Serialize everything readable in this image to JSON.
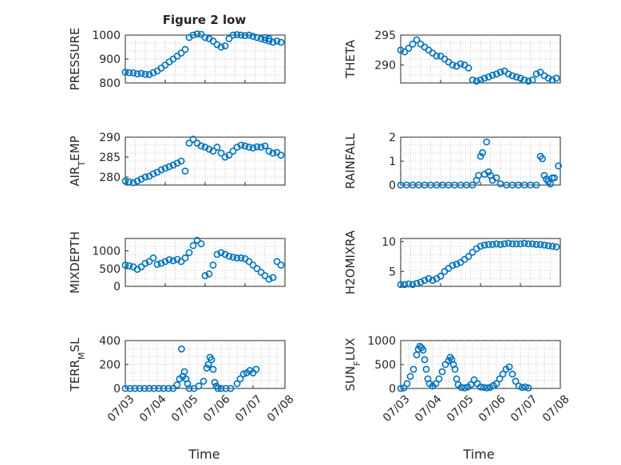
{
  "figure": {
    "title": "Figure 2 low",
    "xlabel": "Time"
  },
  "colors": {
    "marker": "#0072BD",
    "axis": "#262626",
    "grid": "#b8b8b8"
  },
  "chart_data": [
    {
      "type": "scatter",
      "ylabel": "PRESSURE",
      "ylabel_sub": "",
      "ylabel_rest": "",
      "ylim": [
        800,
        1000
      ],
      "yticks": [
        "800",
        "900",
        "1000"
      ],
      "ytick_values": [
        800,
        900,
        1000
      ],
      "xlim": [
        0,
        4
      ],
      "show_xticklabels": false,
      "x": [
        0.0,
        0.1,
        0.2,
        0.3,
        0.4,
        0.5,
        0.6,
        0.7,
        0.8,
        0.9,
        1.0,
        1.1,
        1.2,
        1.3,
        1.4,
        1.5,
        1.6,
        1.7,
        1.8,
        1.9,
        2.0,
        2.1,
        2.2,
        2.3,
        2.4,
        2.5,
        2.6,
        2.7,
        2.8,
        2.9,
        3.0,
        3.1,
        3.2,
        3.3,
        3.4,
        3.5,
        3.6,
        3.7,
        3.8,
        3.9,
        3.5,
        3.6
      ],
      "y": [
        845,
        843,
        842,
        838,
        840,
        836,
        835,
        843,
        850,
        862,
        875,
        888,
        900,
        912,
        925,
        940,
        990,
        1000,
        1005,
        1003,
        990,
        985,
        975,
        960,
        950,
        955,
        985,
        1000,
        1002,
        1000,
        998,
        1000,
        995,
        990,
        985,
        980,
        975,
        970,
        975,
        970,
        990,
        985
      ]
    },
    {
      "type": "scatter",
      "ylabel": "THETA",
      "ylabel_sub": "",
      "ylabel_rest": "",
      "ylim": [
        287,
        295
      ],
      "yticks": [
        "290",
        "295"
      ],
      "ytick_values": [
        290,
        295
      ],
      "xlim": [
        0,
        4
      ],
      "show_xticklabels": false,
      "x": [
        0.0,
        0.1,
        0.2,
        0.3,
        0.4,
        0.5,
        0.6,
        0.7,
        0.8,
        0.9,
        1.0,
        1.1,
        1.2,
        1.3,
        1.4,
        1.5,
        1.6,
        1.7,
        1.8,
        1.9,
        2.0,
        2.1,
        2.2,
        2.3,
        2.4,
        2.5,
        2.6,
        2.7,
        2.8,
        2.9,
        3.0,
        3.1,
        3.2,
        3.3,
        3.4,
        3.5,
        3.6,
        3.7,
        3.8,
        3.9
      ],
      "y": [
        292.5,
        292.2,
        292.8,
        293.5,
        294.2,
        293.5,
        293.0,
        292.5,
        292.0,
        291.5,
        291.5,
        291.0,
        290.5,
        290.0,
        289.8,
        290.2,
        290.0,
        289.5,
        287.5,
        287.3,
        287.5,
        287.8,
        288.0,
        288.3,
        288.5,
        288.8,
        289.0,
        288.5,
        288.2,
        288.0,
        287.8,
        287.5,
        287.3,
        287.5,
        288.5,
        288.8,
        288.2,
        287.8,
        287.5,
        287.8
      ]
    },
    {
      "type": "scatter",
      "ylabel": "AIR",
      "ylabel_sub": "T",
      "ylabel_rest": "EMP",
      "ylim": [
        278,
        290
      ],
      "yticks": [
        "280",
        "285",
        "290"
      ],
      "ytick_values": [
        280,
        285,
        290
      ],
      "xlim": [
        0,
        4
      ],
      "show_xticklabels": false,
      "x": [
        0.0,
        0.1,
        0.2,
        0.3,
        0.4,
        0.5,
        0.6,
        0.7,
        0.8,
        0.9,
        1.0,
        1.1,
        1.2,
        1.3,
        1.4,
        1.5,
        1.6,
        1.7,
        1.8,
        1.9,
        2.0,
        2.1,
        2.2,
        2.3,
        2.4,
        2.5,
        2.6,
        2.7,
        2.8,
        2.9,
        3.0,
        3.1,
        3.2,
        3.3,
        3.4,
        3.5,
        3.6,
        3.7,
        3.8,
        3.9
      ],
      "y": [
        279.0,
        278.8,
        278.6,
        279.0,
        279.5,
        280.0,
        280.2,
        280.8,
        281.2,
        281.8,
        282.2,
        282.6,
        283.0,
        283.5,
        284.0,
        281.5,
        288.5,
        289.5,
        288.5,
        287.8,
        287.5,
        287.0,
        286.5,
        287.5,
        286.0,
        285.0,
        285.5,
        286.5,
        287.5,
        288.0,
        287.8,
        287.5,
        287.3,
        287.6,
        287.5,
        287.8,
        286.5,
        286.0,
        286.2,
        285.5
      ]
    },
    {
      "type": "scatter",
      "ylabel": "RAINFALL",
      "ylabel_sub": "",
      "ylabel_rest": "",
      "ylim": [
        0,
        2
      ],
      "yticks": [
        "0",
        "1",
        "2"
      ],
      "ytick_values": [
        0,
        1,
        2
      ],
      "xlim": [
        0,
        4
      ],
      "show_xticklabels": false,
      "x": [
        0.0,
        0.15,
        0.3,
        0.45,
        0.6,
        0.75,
        0.9,
        1.05,
        1.2,
        1.35,
        1.5,
        1.65,
        1.8,
        1.9,
        1.95,
        2.0,
        2.05,
        2.1,
        2.15,
        2.2,
        2.25,
        2.3,
        2.4,
        2.5,
        2.65,
        2.8,
        2.95,
        3.1,
        3.25,
        3.4,
        3.5,
        3.55,
        3.6,
        3.65,
        3.7,
        3.75,
        3.8,
        3.85,
        3.95
      ],
      "y": [
        0,
        0,
        0,
        0,
        0,
        0,
        0,
        0,
        0,
        0,
        0,
        0,
        0,
        0.2,
        0.4,
        1.2,
        1.35,
        0.45,
        1.8,
        0.55,
        0.4,
        0.2,
        0.3,
        0.05,
        0,
        0,
        0,
        0,
        0,
        0,
        1.2,
        1.1,
        0.4,
        0.25,
        0.15,
        0.05,
        0.3,
        0.3,
        0.8
      ]
    },
    {
      "type": "scatter",
      "ylabel": "MIXDEPTH",
      "ylabel_sub": "",
      "ylabel_rest": "",
      "ylim": [
        0,
        1350
      ],
      "yticks": [
        "0",
        "500",
        "1000"
      ],
      "ytick_values": [
        0,
        500,
        1000
      ],
      "xlim": [
        0,
        4
      ],
      "show_xticklabels": false,
      "x": [
        0.0,
        0.1,
        0.2,
        0.3,
        0.4,
        0.5,
        0.6,
        0.7,
        0.8,
        0.9,
        1.0,
        1.1,
        1.2,
        1.3,
        1.4,
        1.5,
        1.6,
        1.7,
        1.8,
        1.9,
        2.0,
        2.1,
        2.2,
        2.3,
        2.4,
        2.5,
        2.6,
        2.7,
        2.8,
        2.9,
        3.0,
        3.1,
        3.2,
        3.3,
        3.4,
        3.5,
        3.6,
        3.7,
        3.8,
        3.9
      ],
      "y": [
        600,
        580,
        550,
        480,
        550,
        650,
        700,
        800,
        620,
        650,
        700,
        750,
        720,
        760,
        700,
        800,
        950,
        1150,
        1300,
        1200,
        300,
        350,
        600,
        900,
        950,
        900,
        850,
        820,
        800,
        800,
        780,
        700,
        600,
        500,
        400,
        300,
        200,
        250,
        700,
        600
      ]
    },
    {
      "type": "scatter",
      "ylabel": "H2OMIXRA",
      "ylabel_sub": "",
      "ylabel_rest": "",
      "ylim": [
        2.5,
        10.5
      ],
      "yticks": [
        "5",
        "10"
      ],
      "ytick_values": [
        5,
        10
      ],
      "xlim": [
        0,
        4
      ],
      "show_xticklabels": false,
      "x": [
        0.0,
        0.1,
        0.2,
        0.3,
        0.4,
        0.5,
        0.6,
        0.7,
        0.8,
        0.9,
        1.0,
        1.1,
        1.2,
        1.3,
        1.4,
        1.5,
        1.6,
        1.7,
        1.8,
        1.9,
        2.0,
        2.1,
        2.2,
        2.3,
        2.4,
        2.5,
        2.6,
        2.7,
        2.8,
        2.9,
        3.0,
        3.1,
        3.2,
        3.3,
        3.4,
        3.5,
        3.6,
        3.7,
        3.8,
        3.9
      ],
      "y": [
        2.8,
        2.8,
        2.9,
        2.8,
        3.0,
        3.2,
        3.5,
        3.8,
        3.5,
        3.8,
        4.2,
        5.0,
        5.5,
        6.0,
        6.2,
        6.5,
        7.0,
        7.5,
        8.2,
        8.8,
        9.2,
        9.4,
        9.5,
        9.5,
        9.6,
        9.5,
        9.6,
        9.7,
        9.6,
        9.6,
        9.6,
        9.7,
        9.6,
        9.6,
        9.5,
        9.5,
        9.4,
        9.3,
        9.2,
        9.1
      ]
    },
    {
      "type": "scatter",
      "ylabel": "TERR",
      "ylabel_sub": "M",
      "ylabel_rest": "SL",
      "ylim": [
        0,
        400
      ],
      "yticks": [
        "0",
        "200",
        "400"
      ],
      "ytick_values": [
        0,
        200,
        400
      ],
      "xlim": [
        0,
        5
      ],
      "show_xticklabels": true,
      "xticks": [
        "07/03",
        "07/04",
        "07/05",
        "07/06",
        "07/07",
        "07/08"
      ],
      "xtick_values": [
        0,
        1,
        2,
        3,
        4,
        5
      ],
      "x": [
        0.0,
        0.15,
        0.3,
        0.45,
        0.6,
        0.75,
        0.9,
        1.05,
        1.2,
        1.35,
        1.5,
        1.62,
        1.7,
        1.76,
        1.8,
        1.85,
        1.9,
        1.95,
        2.0,
        2.15,
        2.3,
        2.45,
        2.55,
        2.6,
        2.65,
        2.7,
        2.75,
        2.8,
        2.85,
        2.9,
        3.0,
        3.15,
        3.3,
        3.5,
        3.6,
        3.7,
        3.8,
        3.9,
        4.0,
        4.1
      ],
      "y": [
        0,
        0,
        0,
        0,
        0,
        0,
        0,
        0,
        0,
        0,
        0,
        30,
        80,
        330,
        100,
        140,
        80,
        40,
        0,
        0,
        20,
        60,
        170,
        200,
        260,
        240,
        160,
        50,
        20,
        0,
        0,
        0,
        0,
        40,
        80,
        120,
        130,
        150,
        130,
        160
      ]
    },
    {
      "type": "scatter",
      "ylabel": "SUN",
      "ylabel_sub": "F",
      "ylabel_rest": "LUX",
      "ylim": [
        0,
        1000
      ],
      "yticks": [
        "0",
        "500",
        "1000"
      ],
      "ytick_values": [
        0,
        500,
        1000
      ],
      "xlim": [
        0,
        5
      ],
      "show_xticklabels": true,
      "xticks": [
        "07/03",
        "07/04",
        "07/05",
        "07/06",
        "07/07",
        "07/08"
      ],
      "xtick_values": [
        0,
        1,
        2,
        3,
        4,
        5
      ],
      "x": [
        0.0,
        0.1,
        0.2,
        0.3,
        0.4,
        0.5,
        0.55,
        0.6,
        0.65,
        0.7,
        0.75,
        0.8,
        0.85,
        0.9,
        1.0,
        1.1,
        1.2,
        1.3,
        1.4,
        1.5,
        1.55,
        1.6,
        1.65,
        1.7,
        1.75,
        1.8,
        1.9,
        2.0,
        2.1,
        2.2,
        2.3,
        2.4,
        2.5,
        2.6,
        2.7,
        2.8,
        2.9,
        3.0,
        3.1,
        3.2,
        3.3,
        3.4,
        3.5,
        3.6,
        3.7,
        3.8,
        3.9,
        4.0
      ],
      "y": [
        0,
        10,
        100,
        250,
        400,
        700,
        820,
        880,
        850,
        800,
        600,
        400,
        200,
        100,
        50,
        100,
        200,
        350,
        500,
        580,
        650,
        600,
        500,
        400,
        200,
        80,
        20,
        10,
        30,
        80,
        180,
        100,
        30,
        20,
        10,
        20,
        60,
        100,
        200,
        300,
        400,
        450,
        300,
        150,
        50,
        20,
        30,
        10
      ]
    }
  ]
}
